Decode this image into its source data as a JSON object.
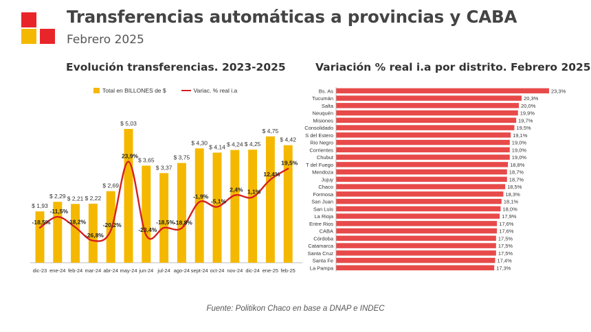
{
  "header": {
    "title": "Transferencias automáticas a provincias y CABA",
    "subtitle": "Febrero 2025",
    "colors": {
      "red": "#E8262A",
      "yellow": "#F5B800"
    }
  },
  "source": "Fuente: Politikon Chaco en base a DNAP e INDEC",
  "chart_data": [
    {
      "type": "bar",
      "title": "Evolución transferencias. 2023-2025",
      "categories": [
        "dic-23",
        "ene-24",
        "feb-24",
        "mar-24",
        "abr-24",
        "may-24",
        "jun-24",
        "jul-24",
        "ago-24",
        "sept-24",
        "oct-24",
        "nov-24",
        "dic-24",
        "ene-25",
        "feb-25"
      ],
      "series": [
        {
          "name": "Total en BILLONES de $",
          "kind": "bar",
          "color": "#F5B800",
          "values": [
            1.93,
            2.29,
            2.21,
            2.22,
            2.69,
            5.03,
            3.65,
            3.37,
            3.75,
            4.3,
            4.14,
            4.24,
            4.25,
            4.75,
            4.42
          ],
          "labels": [
            "$ 1,93",
            "$ 2,29",
            "$ 2,21",
            "$ 2,22",
            "$ 2,69",
            "$ 5,03",
            "$ 3,65",
            "$ 3,37",
            "$ 3,75",
            "$ 4,30",
            "$ 4,14",
            "$ 4,24",
            "$ 4,25",
            "$ 4,75",
            "$ 4,42"
          ]
        },
        {
          "name": "Variac. % real i.a",
          "kind": "line",
          "color": "#D42020",
          "values": [
            -18.5,
            -11.5,
            -18.2,
            -26.8,
            -20.2,
            23.9,
            -23.4,
            -18.5,
            -18.8,
            -1.9,
            -5.1,
            2.4,
            1.1,
            12.4,
            19.5
          ],
          "labels": [
            "-18,5%",
            "-11,5%",
            "-18,2%",
            "-26,8%",
            "-20,2%",
            "23,9%",
            "-23,4%",
            "-18,5%",
            "-18,8%",
            "-1,9%",
            "-5,1%",
            "2,4%",
            "1,1%",
            "12,4%",
            "19,5%"
          ]
        }
      ],
      "legend": "top",
      "grid": false
    },
    {
      "type": "bar",
      "orientation": "horizontal",
      "title": "Variación % real i.a por distrito. Febrero 2025",
      "categories": [
        "Bs. As",
        "Tucumán",
        "Salta",
        "Neuquén",
        "Misiones",
        "Consolidado",
        "S del Estero",
        "Rio Negro",
        "Corrientes",
        "Chubut",
        "T del Fuego",
        "Mendoza",
        "Jujuy",
        "Chaco",
        "Formosa",
        "San Juan",
        "San Luis",
        "La Rioja",
        "Entre Rios",
        "CABA",
        "Córdoba",
        "Catamarca",
        "Santa Cruz",
        "Santa Fe",
        "La Pampa"
      ],
      "values": [
        23.3,
        20.3,
        20.0,
        19.9,
        19.7,
        19.5,
        19.1,
        19.0,
        19.0,
        19.0,
        18.8,
        18.7,
        18.7,
        18.5,
        18.3,
        18.1,
        18.0,
        17.9,
        17.6,
        17.6,
        17.5,
        17.5,
        17.5,
        17.4,
        17.3
      ],
      "labels": [
        "23,3%",
        "20,3%",
        "20,0%",
        "19,9%",
        "19,7%",
        "19,5%",
        "19,1%",
        "19,0%",
        "19,0%",
        "19,0%",
        "18,8%",
        "18,7%",
        "18,7%",
        "18,5%",
        "18,3%",
        "18,1%",
        "18,0%",
        "17,9%",
        "17,6%",
        "17,6%",
        "17,5%",
        "17,5%",
        "17,5%",
        "17,4%",
        "17,3%"
      ],
      "color": "#E84A4A",
      "xlim": [
        0,
        23.3
      ],
      "grid": false
    }
  ]
}
